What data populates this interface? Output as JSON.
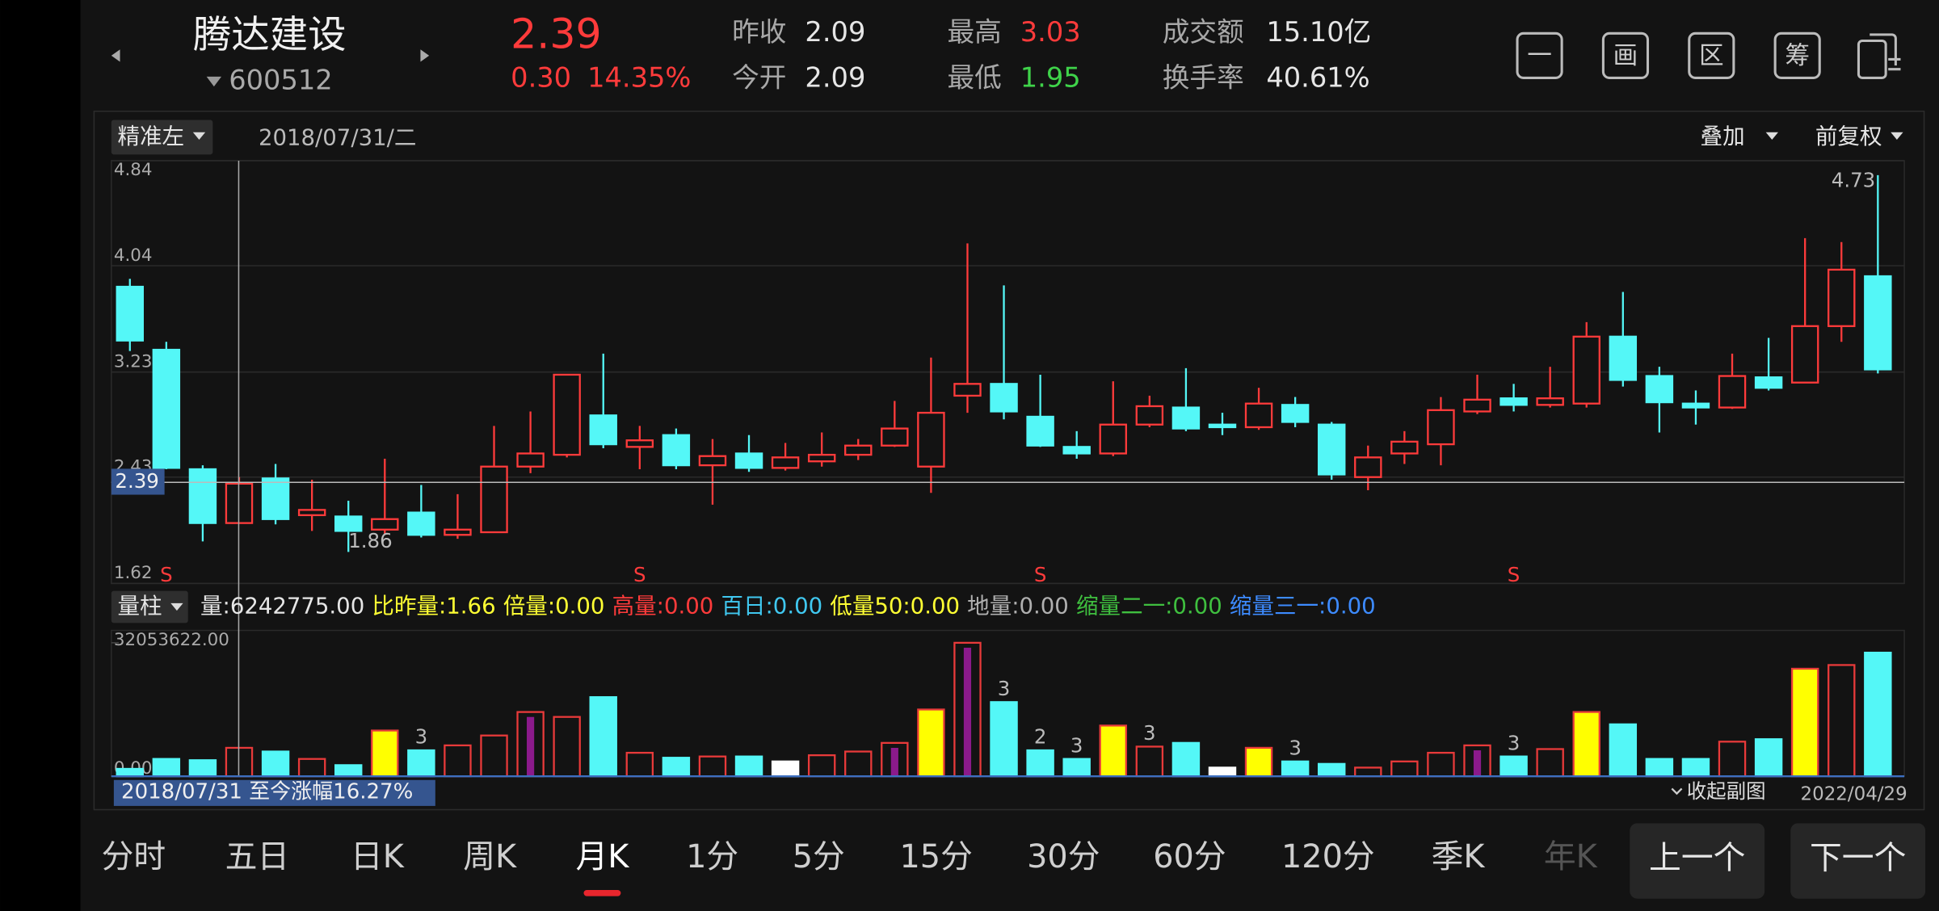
{
  "header": {
    "name": "腾达建设",
    "code": "600512",
    "price": "2.39",
    "change": "0.30",
    "change_pct": "14.35%",
    "stats": [
      {
        "label": "昨收",
        "value": "2.09",
        "color": "#e6e6e6"
      },
      {
        "label": "今开",
        "value": "2.09",
        "color": "#e6e6e6"
      },
      {
        "label": "最高",
        "value": "3.03",
        "color": "#ff3b3b"
      },
      {
        "label": "最低",
        "value": "1.95",
        "color": "#3fd34a"
      },
      {
        "label": "成交额",
        "value": "15.10亿",
        "color": "#e6e6e6"
      },
      {
        "label": "换手率",
        "value": "40.61%",
        "color": "#e6e6e6"
      }
    ]
  },
  "icons": [
    "一",
    "画",
    "区",
    "筹"
  ],
  "toolbar": {
    "mode": "精准左",
    "date": "2018/07/31/二",
    "overlay": "叠加",
    "adjust": "前复权"
  },
  "chart_data": [
    {
      "type": "candlestick",
      "ylim": [
        1.62,
        4.84
      ],
      "yticks": [
        4.84,
        4.04,
        3.23,
        2.43,
        1.62
      ],
      "grid": true,
      "up_color": "#ff3b3b",
      "down_color": "#54f7f7",
      "last_price": 2.39,
      "high_label": 4.73,
      "low_label": 1.86,
      "candles": [
        [
          3.88,
          3.94,
          3.39,
          3.47
        ],
        [
          3.4,
          3.46,
          2.49,
          2.5
        ],
        [
          2.49,
          2.52,
          1.94,
          2.08
        ],
        [
          2.08,
          2.43,
          2.08,
          2.38
        ],
        [
          2.42,
          2.53,
          2.07,
          2.11
        ],
        [
          2.14,
          2.41,
          2.02,
          2.18
        ],
        [
          2.13,
          2.25,
          1.86,
          2.02
        ],
        [
          2.03,
          2.57,
          1.99,
          2.11
        ],
        [
          2.16,
          2.37,
          1.97,
          1.99
        ],
        [
          1.99,
          2.3,
          1.96,
          2.03
        ],
        [
          2.01,
          2.82,
          2.01,
          2.51
        ],
        [
          2.51,
          2.93,
          2.46,
          2.61
        ],
        [
          2.6,
          3.21,
          2.58,
          3.21
        ],
        [
          2.9,
          3.37,
          2.65,
          2.68
        ],
        [
          2.66,
          2.82,
          2.49,
          2.71
        ],
        [
          2.75,
          2.8,
          2.49,
          2.52
        ],
        [
          2.52,
          2.72,
          2.22,
          2.59
        ],
        [
          2.61,
          2.75,
          2.47,
          2.5
        ],
        [
          2.5,
          2.69,
          2.48,
          2.58
        ],
        [
          2.55,
          2.77,
          2.51,
          2.6
        ],
        [
          2.6,
          2.72,
          2.56,
          2.67
        ],
        [
          2.67,
          3.01,
          2.66,
          2.8
        ],
        [
          2.51,
          3.34,
          2.31,
          2.92
        ],
        [
          3.05,
          4.21,
          2.92,
          3.14
        ],
        [
          3.14,
          3.89,
          2.87,
          2.93
        ],
        [
          2.89,
          3.21,
          2.66,
          2.67
        ],
        [
          2.66,
          2.78,
          2.57,
          2.61
        ],
        [
          2.61,
          3.16,
          2.59,
          2.83
        ],
        [
          2.83,
          3.05,
          2.81,
          2.97
        ],
        [
          2.96,
          3.26,
          2.78,
          2.8
        ],
        [
          2.83,
          2.92,
          2.75,
          2.81
        ],
        [
          2.81,
          3.11,
          2.79,
          2.99
        ],
        [
          2.98,
          3.04,
          2.81,
          2.85
        ],
        [
          2.83,
          2.85,
          2.41,
          2.45
        ],
        [
          2.43,
          2.67,
          2.33,
          2.58
        ],
        [
          2.61,
          2.78,
          2.53,
          2.7
        ],
        [
          2.68,
          3.04,
          2.52,
          2.94
        ],
        [
          2.93,
          3.21,
          2.91,
          3.02
        ],
        [
          3.03,
          3.14,
          2.93,
          2.98
        ],
        [
          2.98,
          3.27,
          2.96,
          3.03
        ],
        [
          2.99,
          3.61,
          2.96,
          3.5
        ],
        [
          3.5,
          3.84,
          3.12,
          3.17
        ],
        [
          3.2,
          3.27,
          2.77,
          3.0
        ],
        [
          2.99,
          3.09,
          2.83,
          2.96
        ],
        [
          2.96,
          3.37,
          2.95,
          3.2
        ],
        [
          3.19,
          3.49,
          3.09,
          3.11
        ],
        [
          3.15,
          4.25,
          3.15,
          3.58
        ],
        [
          3.58,
          4.22,
          3.46,
          4.01
        ],
        [
          3.96,
          4.73,
          3.22,
          3.25
        ]
      ],
      "signals": [
        null,
        "S",
        null,
        null,
        null,
        null,
        null,
        null,
        null,
        null,
        null,
        null,
        null,
        null,
        "S",
        null,
        null,
        null,
        null,
        null,
        null,
        null,
        null,
        null,
        null,
        "S",
        null,
        null,
        null,
        null,
        null,
        null,
        null,
        null,
        null,
        null,
        null,
        null,
        "S",
        null,
        null,
        null,
        null,
        null,
        null,
        null,
        null,
        null,
        null
      ],
      "signal_color": "#ff3b3b"
    },
    {
      "type": "bar",
      "ylim": [
        0,
        32053622
      ],
      "yticks": [
        {
          "value": 32053622,
          "label": "32053622.00"
        },
        {
          "value": 0,
          "label": "0.00"
        }
      ],
      "values": [
        1780000,
        4160000,
        3860000,
        6830000,
        5940000,
        4160000,
        2670000,
        10980000,
        6230000,
        7420000,
        9790000,
        15430000,
        14250000,
        19000000,
        5640000,
        4450000,
        4750000,
        4750000,
        3560000,
        5050000,
        5940000,
        8010000,
        16030000,
        32050000,
        17810000,
        6230000,
        4160000,
        12170000,
        7120000,
        8010000,
        2080000,
        6830000,
        3560000,
        2970000,
        2080000,
        3560000,
        5640000,
        7420000,
        4750000,
        6530000,
        15430000,
        12470000,
        4160000,
        4160000,
        8310000,
        8900000,
        25820000,
        26710000,
        29680000
      ],
      "kinds": [
        "down",
        "down",
        "down",
        "up",
        "down",
        "up",
        "down",
        "yellow",
        "down",
        "up",
        "up",
        "purple",
        "up",
        "down",
        "up",
        "down",
        "up",
        "down",
        "white",
        "up",
        "up",
        "purple",
        "yellow",
        "purple",
        "down",
        "down",
        "down",
        "yellow",
        "up",
        "down",
        "white",
        "yellow",
        "down",
        "down",
        "up",
        "up",
        "up",
        "purple",
        "down",
        "up",
        "yellow",
        "down",
        "down",
        "down",
        "up",
        "down",
        "yellow",
        "up",
        "down"
      ],
      "kind_colors": {
        "down": "#54f7f7",
        "up": "#e83a3a",
        "yellow": "#ffff00",
        "white": "#ffffff",
        "purple": "#8b1a8b"
      },
      "annotations": [
        null,
        null,
        null,
        null,
        null,
        null,
        null,
        null,
        "3",
        null,
        null,
        null,
        null,
        null,
        null,
        null,
        null,
        null,
        null,
        null,
        null,
        null,
        null,
        null,
        "3",
        "2",
        "3",
        null,
        "3",
        null,
        null,
        null,
        "3",
        null,
        null,
        null,
        null,
        null,
        "3",
        null,
        null,
        null,
        null,
        null,
        null,
        null,
        null,
        null,
        null
      ]
    }
  ],
  "indicator": {
    "name": "量柱",
    "items": [
      {
        "label": "量:",
        "value": "6242775.00",
        "color": "#e6e6e6"
      },
      {
        "label": "比昨量:",
        "value": "1.66",
        "color": "#ffff33"
      },
      {
        "label": "倍量:",
        "value": "0.00",
        "color": "#ffff33"
      },
      {
        "label": "高量:",
        "value": "0.00",
        "color": "#ff3b3b"
      },
      {
        "label": "百日:",
        "value": "0.00",
        "color": "#40c8f0"
      },
      {
        "label": "低量50:",
        "value": "0.00",
        "color": "#ffff33"
      },
      {
        "label": "地量:",
        "value": "0.00",
        "color": "#b0b0b0"
      },
      {
        "label": "缩量二一:",
        "value": "0.00",
        "color": "#3fbf3f"
      },
      {
        "label": "缩量三一:",
        "value": "0.00",
        "color": "#3d8bff"
      }
    ]
  },
  "footer": {
    "range_gain": "2018/07/31 至今涨幅16.27%",
    "collapse": "收起副图",
    "end_date": "2022/04/29"
  },
  "tabs": [
    "分时",
    "五日",
    "日K",
    "周K",
    "月K",
    "1分",
    "5分",
    "15分",
    "30分",
    "60分",
    "120分",
    "季K",
    "年K"
  ],
  "active_tab": 4,
  "buttons": [
    "上一个",
    "下一个"
  ]
}
